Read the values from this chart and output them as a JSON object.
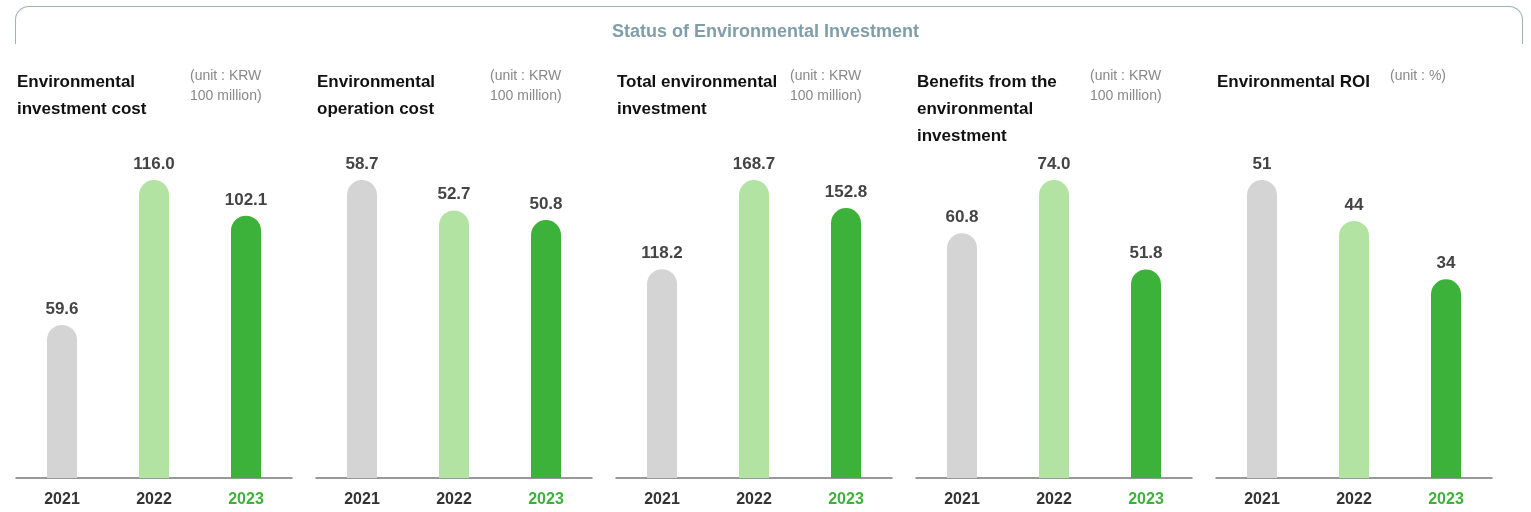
{
  "chart_data": [
    {
      "type": "bar",
      "title": "Environmental investment cost",
      "annotations": [
        "Status of Environmental Investment",
        "(unit : KRW 100 million)"
      ],
      "categories": [
        "2021",
        "2022",
        "2023"
      ],
      "values": [
        59.6,
        116.0,
        102.1
      ],
      "value_labels": [
        "59.6",
        "116.0",
        "102.1"
      ],
      "colors": [
        "#d4d4d4",
        "#b2e3a3",
        "#3db23a"
      ],
      "tick_labels": "x",
      "grid": false
    },
    {
      "type": "bar",
      "title": "Environmental operation cost",
      "annotations": [
        "(unit : KRW 100 million)"
      ],
      "categories": [
        "2021",
        "2022",
        "2023"
      ],
      "values": [
        58.7,
        52.7,
        50.8
      ],
      "value_labels": [
        "58.7",
        "52.7",
        "50.8"
      ],
      "colors": [
        "#d4d4d4",
        "#b2e3a3",
        "#3db23a"
      ],
      "tick_labels": "x",
      "grid": false
    },
    {
      "type": "bar",
      "title": "Total environmental investment",
      "annotations": [
        "(unit : KRW 100 million)"
      ],
      "categories": [
        "2021",
        "2022",
        "2023"
      ],
      "values": [
        118.2,
        168.7,
        152.8
      ],
      "value_labels": [
        "118.2",
        "168.7",
        "152.8"
      ],
      "colors": [
        "#d4d4d4",
        "#b2e3a3",
        "#3db23a"
      ],
      "tick_labels": "x",
      "grid": false
    },
    {
      "type": "bar",
      "title": "Benefits from the environmental investment",
      "annotations": [
        "(unit : KRW 100 million)"
      ],
      "categories": [
        "2021",
        "2022",
        "2023"
      ],
      "values": [
        60.8,
        74.0,
        51.8
      ],
      "value_labels": [
        "60.8",
        "74.0",
        "51.8"
      ],
      "colors": [
        "#d4d4d4",
        "#b2e3a3",
        "#3db23a"
      ],
      "tick_labels": "x",
      "grid": false
    },
    {
      "type": "bar",
      "title": "Environmental ROI",
      "annotations": [
        "(unit : %)"
      ],
      "categories": [
        "2021",
        "2022",
        "2023"
      ],
      "values": [
        51,
        44,
        34
      ],
      "value_labels": [
        "51",
        "44",
        "34"
      ],
      "colors": [
        "#d4d4d4",
        "#b2e3a3",
        "#3db23a"
      ],
      "tick_labels": "x",
      "grid": false
    }
  ]
}
